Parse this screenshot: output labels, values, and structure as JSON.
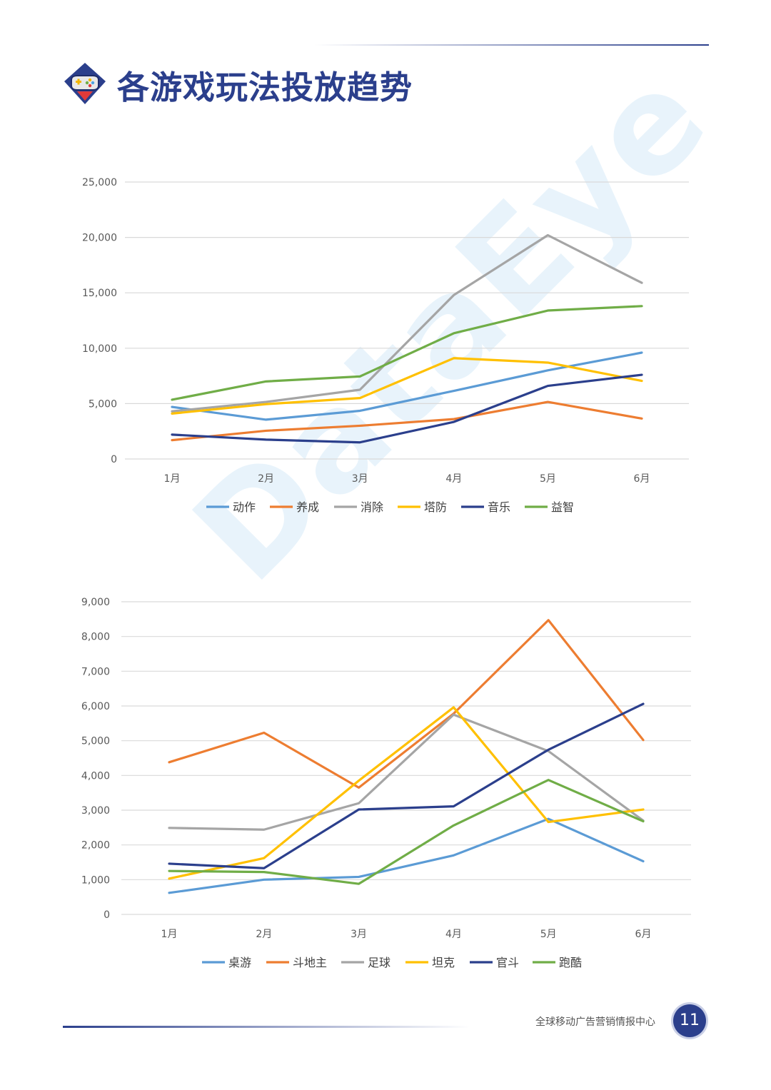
{
  "page": {
    "title": "各游戏玩法投放趋势",
    "watermark": "DataEye",
    "footer": "全球移动广告营销情报中心",
    "page_number": "11"
  },
  "chart_data": [
    {
      "type": "line",
      "title": "",
      "categories": [
        "1月",
        "2月",
        "3月",
        "4月",
        "5月",
        "6月"
      ],
      "ylim": [
        0,
        25000
      ],
      "yticks": [
        0,
        5000,
        10000,
        15000,
        20000,
        25000
      ],
      "ytick_labels": [
        "0",
        "5,000",
        "10,000",
        "15,000",
        "20,000",
        "25,000"
      ],
      "grid": true,
      "legend_position": "bottom",
      "series": [
        {
          "name": "动作",
          "color": "#5b9bd5",
          "values": [
            4700,
            3550,
            4350,
            6150,
            8000,
            9600
          ]
        },
        {
          "name": "养成",
          "color": "#ed7d31",
          "values": [
            1700,
            2550,
            3000,
            3600,
            5150,
            3650
          ]
        },
        {
          "name": "消除",
          "color": "#a5a5a5",
          "values": [
            4300,
            5150,
            6250,
            14800,
            20200,
            15900
          ]
        },
        {
          "name": "塔防",
          "color": "#ffc000",
          "values": [
            4100,
            4950,
            5500,
            9100,
            8700,
            7050
          ]
        },
        {
          "name": "音乐",
          "color": "#2b3f8c",
          "values": [
            2200,
            1750,
            1500,
            3350,
            6600,
            7600
          ]
        },
        {
          "name": "益智",
          "color": "#70ad47",
          "values": [
            5350,
            7000,
            7450,
            11350,
            13400,
            13800
          ]
        }
      ]
    },
    {
      "type": "line",
      "title": "",
      "categories": [
        "1月",
        "2月",
        "3月",
        "4月",
        "5月",
        "6月"
      ],
      "ylim": [
        0,
        9000
      ],
      "yticks": [
        0,
        1000,
        2000,
        3000,
        4000,
        5000,
        6000,
        7000,
        8000,
        9000
      ],
      "ytick_labels": [
        "0",
        "1,000",
        "2,000",
        "3,000",
        "4,000",
        "5,000",
        "6,000",
        "7,000",
        "8,000",
        "9,000"
      ],
      "grid": true,
      "legend_position": "bottom",
      "series": [
        {
          "name": "桌游",
          "color": "#5b9bd5",
          "values": [
            620,
            1000,
            1080,
            1700,
            2750,
            1530
          ]
        },
        {
          "name": "斗地主",
          "color": "#ed7d31",
          "values": [
            4380,
            5230,
            3650,
            5780,
            8470,
            5020
          ]
        },
        {
          "name": "足球",
          "color": "#a5a5a5",
          "values": [
            2490,
            2440,
            3200,
            5750,
            4700,
            2700
          ]
        },
        {
          "name": "坦克",
          "color": "#ffc000",
          "values": [
            1030,
            1620,
            3850,
            5960,
            2660,
            3020
          ]
        },
        {
          "name": "官斗",
          "color": "#2b3f8c",
          "values": [
            1460,
            1330,
            3020,
            3110,
            4740,
            6060
          ]
        },
        {
          "name": "跑酷",
          "color": "#70ad47",
          "values": [
            1250,
            1220,
            880,
            2560,
            3870,
            2680
          ]
        }
      ]
    }
  ]
}
